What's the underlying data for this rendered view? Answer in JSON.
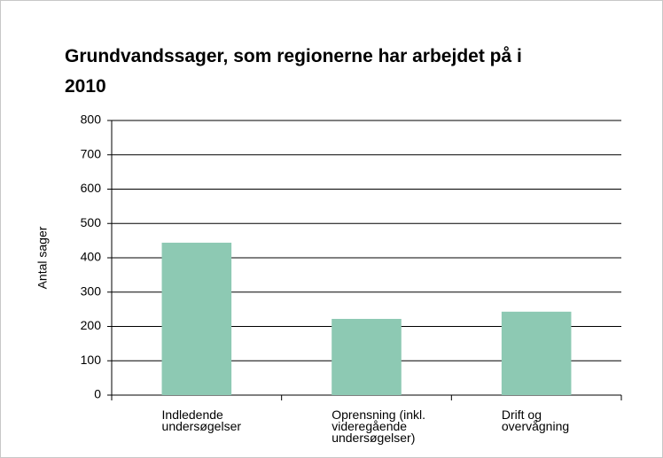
{
  "chart_data": {
    "type": "bar",
    "title": "Grundvandssager, som regionerne har arbejdet på i 2010",
    "y_label": "Antal sager",
    "categories": [
      "Indledende undersøgelser",
      "Oprensning (inkl. videregående undersøgelser)",
      "Drift og overvågning"
    ],
    "values": [
      444,
      222,
      243
    ],
    "color": "#8dc9b3",
    "ylim": [
      0,
      800
    ],
    "yticks": [
      0,
      100,
      200,
      300,
      400,
      500,
      600,
      700,
      800
    ],
    "grid": true
  }
}
